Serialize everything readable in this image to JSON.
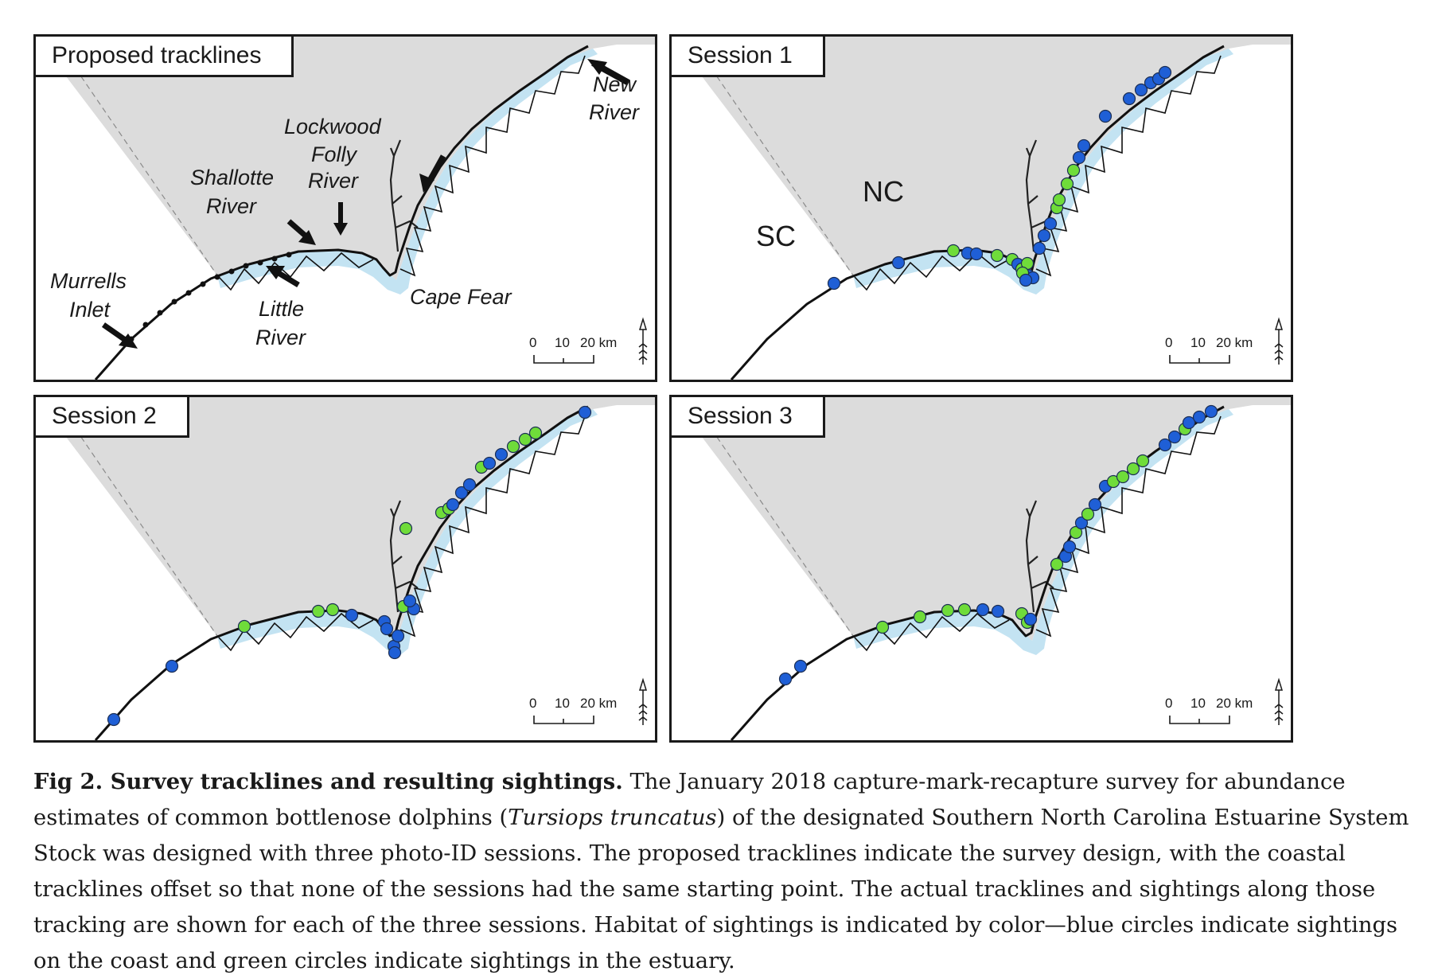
{
  "panels": [
    {
      "id": "proposed",
      "title": "Proposed tracklines",
      "labels": {
        "new_river": [
          "New",
          "River"
        ],
        "lockwood": [
          "Lockwood",
          "Folly",
          "River"
        ],
        "shallotte": [
          "Shallotte",
          "River"
        ],
        "murrells": [
          "Murrells",
          "Inlet"
        ],
        "little_river": [
          "Little",
          "River"
        ],
        "cape_fear": "Cape Fear"
      },
      "scale": [
        "0",
        "10",
        "20 km"
      ]
    },
    {
      "id": "session1",
      "title": "Session 1",
      "state_labels": {
        "nc": "NC",
        "sc": "SC"
      },
      "scale": [
        "0",
        "10",
        "20 km"
      ]
    },
    {
      "id": "session2",
      "title": "Session 2",
      "scale": [
        "0",
        "10",
        "20 km"
      ]
    },
    {
      "id": "session3",
      "title": "Session 3",
      "scale": [
        "0",
        "10",
        "20 km"
      ]
    }
  ],
  "colors": {
    "land": "#dcdcdc",
    "water_buffer": "#c3e3f2",
    "track": "#111111",
    "coast_sighting": "#1f5fd6",
    "estuary_sighting": "#6fdc3a",
    "border": "#1a1a1a"
  },
  "caption": {
    "lead": "Fig 2. Survey tracklines and resulting sightings.",
    "part1": " The January 2018 capture-mark-recapture survey for abundance estimates of common bottlenose dolphins (",
    "species": "Tursiops truncatus",
    "part2": ") of the designated Southern North Carolina Estuarine System Stock was designed with three photo-ID sessions. The proposed tracklines indicate the survey design, with the coastal tracklines offset so that none of the sessions had the same starting point. The actual tracklines and sightings along those tracking are shown for each of the three sessions. Habitat of sightings is indicated by color—blue circles indicate sightings on the coast and green circles indicate sightings in the estuary."
  }
}
